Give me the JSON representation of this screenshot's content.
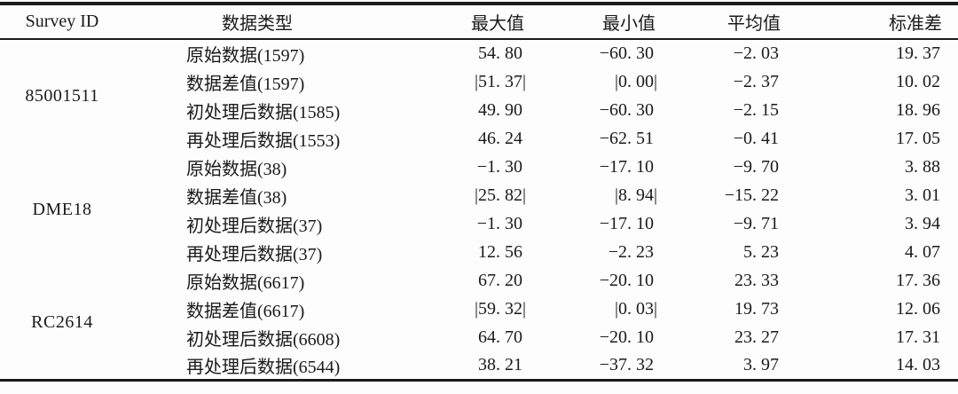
{
  "table": {
    "columns": [
      {
        "key": "survey_id",
        "label": "Survey ID"
      },
      {
        "key": "data_type",
        "label": "数据类型"
      },
      {
        "key": "max",
        "label": "最大值"
      },
      {
        "key": "min",
        "label": "最小值"
      },
      {
        "key": "mean",
        "label": "平均值"
      },
      {
        "key": "std",
        "label": "标准差"
      }
    ],
    "groups": [
      {
        "survey_id": "85001511",
        "rows": [
          {
            "data_type": "原始数据(1597)",
            "max": "54. 80",
            "min": "−60. 30",
            "mean": "−2. 03",
            "std": "19. 37"
          },
          {
            "data_type": "数据差值(1597)",
            "max": "|51. 37|",
            "min": "|0. 00|",
            "mean": "−2. 37",
            "std": "10. 02"
          },
          {
            "data_type": "初处理后数据(1585)",
            "max": "49. 90",
            "min": "−60. 30",
            "mean": "−2. 15",
            "std": "18. 96"
          },
          {
            "data_type": "再处理后数据(1553)",
            "max": "46. 24",
            "min": "−62. 51",
            "mean": "−0. 41",
            "std": "17. 05"
          }
        ]
      },
      {
        "survey_id": "DME18",
        "rows": [
          {
            "data_type": "原始数据(38)",
            "max": "−1. 30",
            "min": "−17. 10",
            "mean": "−9. 70",
            "std": "3. 88"
          },
          {
            "data_type": "数据差值(38)",
            "max": "|25. 82|",
            "min": "|8. 94|",
            "mean": "−15. 22",
            "std": "3. 01"
          },
          {
            "data_type": "初处理后数据(37)",
            "max": "−1. 30",
            "min": "−17. 10",
            "mean": "−9. 71",
            "std": "3. 94"
          },
          {
            "data_type": "再处理后数据(37)",
            "max": "12. 56",
            "min": "−2. 23",
            "mean": "5. 23",
            "std": "4. 07"
          }
        ]
      },
      {
        "survey_id": "RC2614",
        "rows": [
          {
            "data_type": "原始数据(6617)",
            "max": "67. 20",
            "min": "−20. 10",
            "mean": "23. 33",
            "std": "17. 36"
          },
          {
            "data_type": "数据差值(6617)",
            "max": "|59. 32|",
            "min": "|0. 03|",
            "mean": "19. 73",
            "std": "12. 06"
          },
          {
            "data_type": "初处理后数据(6608)",
            "max": "64. 70",
            "min": "−20. 10",
            "mean": "23. 27",
            "std": "17. 31"
          },
          {
            "data_type": "再处理后数据(6544)",
            "max": "38. 21",
            "min": "−37. 32",
            "mean": "3. 97",
            "std": "14. 03"
          }
        ]
      }
    ]
  }
}
